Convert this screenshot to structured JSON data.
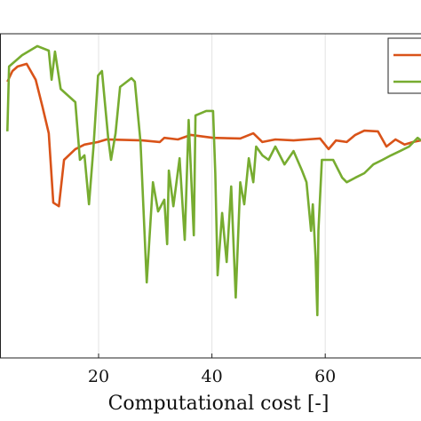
{
  "chart_data": {
    "type": "line",
    "x_label": "Computational cost [-]",
    "xlim": [
      2.6,
      76.9
    ],
    "xticks": [
      20,
      40,
      60
    ],
    "ylim": [
      0,
      100
    ],
    "grid": true,
    "series": [
      {
        "color": "#d95319",
        "x": [
          3.9,
          4.8,
          5.7,
          7.3,
          8.9,
          10.1,
          11.2,
          12.0,
          13.0,
          13.9,
          15.9,
          17.5,
          19.9,
          21.4,
          27.7,
          30.8,
          31.6,
          34.0,
          36.3,
          40.2,
          45.0,
          47.3,
          48.9,
          51.2,
          54.4,
          56.7,
          59.1,
          60.6,
          61.9,
          63.8,
          65.3,
          66.9,
          69.3,
          70.8,
          72.4,
          74.0,
          75.5,
          76.9
        ],
        "values": [
          85.2,
          88.5,
          89.9,
          90.7,
          85.8,
          77.5,
          69.3,
          47.9,
          46.8,
          61.1,
          64.4,
          65.8,
          66.6,
          67.4,
          67.1,
          66.6,
          67.9,
          67.4,
          68.8,
          67.9,
          67.7,
          69.3,
          66.6,
          67.4,
          67.1,
          67.4,
          67.7,
          64.4,
          67.1,
          66.6,
          68.8,
          70.1,
          69.9,
          65.2,
          67.4,
          65.8,
          66.6,
          67.1
        ]
      },
      {
        "color": "#77ac30",
        "x": [
          3.9,
          4.2,
          6.5,
          9.2,
          11.2,
          11.7,
          12.3,
          13.3,
          15.9,
          16.7,
          17.5,
          18.3,
          19.1,
          19.9,
          20.6,
          21.7,
          22.2,
          23.0,
          23.8,
          25.8,
          26.4,
          27.4,
          28.5,
          29.6,
          30.5,
          31.6,
          32.1,
          32.4,
          33.2,
          34.3,
          35.2,
          35.9,
          36.8,
          37.1,
          39.0,
          40.2,
          40.6,
          41.0,
          41.8,
          42.6,
          43.4,
          44.2,
          45.0,
          45.7,
          46.5,
          47.3,
          47.8,
          48.9,
          50.0,
          51.2,
          52.8,
          54.4,
          55.9,
          56.7,
          57.5,
          57.8,
          58.3,
          58.6,
          58.8,
          59.4,
          61.4,
          63.0,
          63.8,
          65.3,
          66.9,
          68.5,
          70.1,
          71.6,
          73.2,
          74.8,
          76.3,
          76.9
        ],
        "values": [
          69.9,
          89.9,
          93.4,
          96.2,
          94.8,
          85.8,
          94.5,
          83.0,
          78.9,
          61.1,
          62.5,
          47.4,
          65.2,
          87.1,
          88.5,
          67.9,
          61.1,
          69.3,
          83.6,
          86.3,
          85.2,
          66.6,
          23.3,
          54.2,
          45.2,
          48.8,
          35.1,
          57.8,
          46.8,
          61.6,
          36.4,
          73.4,
          37.8,
          74.8,
          76.2,
          76.2,
          57.0,
          25.5,
          44.7,
          29.6,
          52.9,
          18.6,
          54.2,
          47.4,
          61.6,
          54.2,
          65.2,
          62.5,
          61.1,
          65.2,
          59.7,
          63.8,
          57.8,
          54.2,
          39.2,
          47.4,
          31.0,
          13.2,
          39.2,
          61.1,
          61.1,
          55.6,
          54.2,
          55.6,
          57.0,
          59.7,
          61.1,
          62.5,
          63.8,
          65.2,
          67.9,
          67.1
        ]
      }
    ]
  }
}
